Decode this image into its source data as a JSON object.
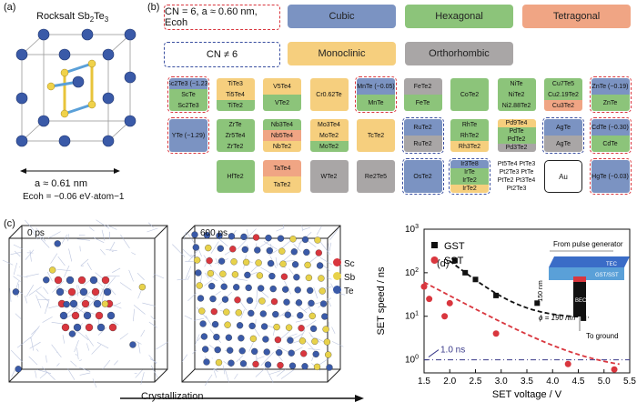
{
  "panel_a": {
    "label": "(a)",
    "title": "Rocksalt Sb2Te3",
    "lattice": "a ≈ 0.61 nm",
    "ecoh": "Ecoh = −0.06 eV·atom−1"
  },
  "panel_b": {
    "label": "(b)",
    "legend": {
      "cn6": "CN = 6, a ≈ 0.60 nm, Ecoh",
      "cn_not6": "CN ≠ 6",
      "cubic": "Cubic",
      "hexagonal": "Hexagonal",
      "tetragonal": "Tetragonal",
      "monoclinic": "Monoclinic",
      "orthorhombic": "Orthorhombic"
    },
    "colors": {
      "cubic": "#7b93c2",
      "hexagonal": "#8cc47a",
      "tetragonal": "#f0a584",
      "monoclinic": "#f6cf7e",
      "orthorhombic": "#a9a6a6",
      "red_dash": "#d9363e",
      "blue_dash": "#3a4fa0"
    },
    "tiles": [
      {
        "col": 0,
        "row": 0,
        "border": "red",
        "segs": [
          {
            "t": "Sc2Te3 (−1.23)",
            "c": "cub"
          },
          {
            "t": "ScTe",
            "c": "hex"
          },
          {
            "t": "Sc2Te3",
            "c": "hex"
          }
        ]
      },
      {
        "col": 1,
        "row": 0,
        "border": "",
        "segs": [
          {
            "t": "TiTe3",
            "c": "mon"
          },
          {
            "t": "Ti5Te4",
            "c": "mon"
          },
          {
            "t": "TiTe2",
            "c": "hex"
          }
        ]
      },
      {
        "col": 2,
        "row": 0,
        "border": "",
        "segs": [
          {
            "t": "V5Te4",
            "c": "mon"
          },
          {
            "t": "VTe2",
            "c": "hex"
          }
        ]
      },
      {
        "col": 3,
        "row": 0,
        "border": "",
        "segs": [
          {
            "t": "Cr0.62Te",
            "c": "mon"
          }
        ]
      },
      {
        "col": 4,
        "row": 0,
        "border": "red",
        "segs": [
          {
            "t": "MnTe (−0.05)",
            "c": "cub"
          },
          {
            "t": "MnTe",
            "c": "hex"
          }
        ]
      },
      {
        "col": 5,
        "row": 0,
        "border": "",
        "segs": [
          {
            "t": "FeTe2",
            "c": "ort"
          },
          {
            "t": "FeTe",
            "c": "hex"
          }
        ]
      },
      {
        "col": 6,
        "row": 0,
        "border": "",
        "segs": [
          {
            "t": "CoTe2",
            "c": "hex"
          }
        ]
      },
      {
        "col": 7,
        "row": 0,
        "border": "",
        "segs": [
          {
            "t": "NiTe",
            "c": "hex"
          },
          {
            "t": "NiTe2",
            "c": "hex"
          },
          {
            "t": "Ni2.88Te2",
            "c": "hex"
          }
        ]
      },
      {
        "col": 8,
        "row": 0,
        "border": "",
        "segs": [
          {
            "t": "Cu7Te5",
            "c": "hex"
          },
          {
            "t": "Cu2.19Te2",
            "c": "hex"
          },
          {
            "t": "Cu3Te2",
            "c": "tet"
          }
        ]
      },
      {
        "col": 9,
        "row": 0,
        "border": "red",
        "segs": [
          {
            "t": "ZnTe (−0.19)",
            "c": "cub"
          },
          {
            "t": "ZnTe",
            "c": "hex"
          }
        ]
      },
      {
        "col": 0,
        "row": 1,
        "border": "red",
        "segs": [
          {
            "t": "YTe (−1.29)",
            "c": "cub"
          }
        ]
      },
      {
        "col": 1,
        "row": 1,
        "border": "",
        "segs": [
          {
            "t": "ZrTe",
            "c": "hex"
          },
          {
            "t": "Zr5Te4",
            "c": "hex"
          },
          {
            "t": "ZrTe2",
            "c": "hex"
          }
        ]
      },
      {
        "col": 2,
        "row": 1,
        "border": "",
        "segs": [
          {
            "t": "Nb3Te4",
            "c": "hex"
          },
          {
            "t": "Nb5Te4",
            "c": "tet"
          },
          {
            "t": "NbTe2",
            "c": "mon"
          }
        ]
      },
      {
        "col": 3,
        "row": 1,
        "border": "",
        "segs": [
          {
            "t": "Mo3Te4",
            "c": "mon"
          },
          {
            "t": "MoTe2",
            "c": "mon"
          },
          {
            "t": "MoTe2",
            "c": "hex"
          }
        ]
      },
      {
        "col": 4,
        "row": 1,
        "border": "",
        "segs": [
          {
            "t": "TcTe2",
            "c": "mon"
          }
        ]
      },
      {
        "col": 5,
        "row": 1,
        "border": "blue",
        "segs": [
          {
            "t": "RuTe2",
            "c": "cub"
          },
          {
            "t": "RuTe2",
            "c": "ort"
          }
        ]
      },
      {
        "col": 6,
        "row": 1,
        "border": "",
        "segs": [
          {
            "t": "RhTe",
            "c": "hex"
          },
          {
            "t": "RhTe2",
            "c": "hex"
          },
          {
            "t": "Rh3Te2",
            "c": "mon"
          }
        ]
      },
      {
        "col": 7,
        "row": 1,
        "border": "",
        "segs": [
          {
            "t": "Pd9Te4",
            "c": "mon"
          },
          {
            "t": "PdTe",
            "c": "hex"
          },
          {
            "t": "PdTe2",
            "c": "hex"
          },
          {
            "t": "Pd3Te2",
            "c": "ort"
          }
        ]
      },
      {
        "col": 8,
        "row": 1,
        "border": "blue",
        "segs": [
          {
            "t": "AgTe",
            "c": "cub"
          },
          {
            "t": "AgTe",
            "c": "ort"
          }
        ]
      },
      {
        "col": 9,
        "row": 1,
        "border": "red",
        "segs": [
          {
            "t": "CdTe (−0.30)",
            "c": "cub"
          },
          {
            "t": "CdTe",
            "c": "hex"
          }
        ]
      },
      {
        "col": 1,
        "row": 2,
        "border": "",
        "segs": [
          {
            "t": "HfTe2",
            "c": "hex"
          }
        ]
      },
      {
        "col": 2,
        "row": 2,
        "border": "",
        "segs": [
          {
            "t": "TaTe4",
            "c": "tet"
          },
          {
            "t": "TaTe2",
            "c": "mon"
          }
        ]
      },
      {
        "col": 3,
        "row": 2,
        "border": "",
        "segs": [
          {
            "t": "WTe2",
            "c": "ort"
          }
        ]
      },
      {
        "col": 4,
        "row": 2,
        "border": "",
        "segs": [
          {
            "t": "Re2Te5",
            "c": "ort"
          }
        ]
      },
      {
        "col": 5,
        "row": 2,
        "border": "blue",
        "segs": [
          {
            "t": "OsTe2",
            "c": "cub"
          }
        ]
      },
      {
        "col": 6,
        "row": 2,
        "border": "blue",
        "segs": [
          {
            "t": "Ir3Te8",
            "c": "cub"
          },
          {
            "t": "IrTe",
            "c": "hex"
          },
          {
            "t": "IrTe2",
            "c": "hex"
          },
          {
            "t": "IrTe2",
            "c": "mon"
          }
        ]
      },
      {
        "col": 7,
        "row": 2,
        "border": "",
        "segs": [
          {
            "t": "Pt5Te4 PtTe3",
            "c": "wht"
          },
          {
            "t": "Pt2Te3 PtTe",
            "c": "wht"
          },
          {
            "t": "PtTe2 Pt3Te4",
            "c": "wht"
          },
          {
            "t": "Pt2Te3",
            "c": "wht"
          }
        ]
      },
      {
        "col": 8,
        "row": 2,
        "border": "au",
        "segs": [
          {
            "t": "Au",
            "c": "wht"
          }
        ]
      },
      {
        "col": 9,
        "row": 2,
        "border": "red",
        "segs": [
          {
            "t": "HgTe (−0.03)",
            "c": "cub"
          }
        ]
      }
    ]
  },
  "panel_c": {
    "label": "(c)",
    "time0": "0 ps",
    "time1": "600 ps",
    "legend": [
      {
        "name": "Sc",
        "color": "#d9363e"
      },
      {
        "name": "Sb",
        "color": "#e8d24a"
      },
      {
        "name": "Te",
        "color": "#3a5aa8"
      }
    ],
    "arrow": "Crystallization"
  },
  "panel_d": {
    "label": "(d)",
    "inset": {
      "source": "From pulse generator",
      "thickness": "150 nm",
      "diameter": "ϕ = 190 nm",
      "ground": "To ground",
      "tec": "TEC",
      "bec": "BEC",
      "film": "GST/SST"
    },
    "chart_data": {
      "type": "scatter",
      "xlabel": "SET voltage / V",
      "ylabel": "SET speed / ns",
      "xlim": [
        1.5,
        5.5
      ],
      "ylim": [
        0.5,
        1000
      ],
      "yscale": "log",
      "xticks": [
        "1.5",
        "2.0",
        "2.5",
        "3.0",
        "3.5",
        "4.0",
        "4.5",
        "5.0",
        "5.5"
      ],
      "yticks": [
        "10^0",
        "10^1",
        "10^2",
        "10^3"
      ],
      "reference": {
        "label": "1.0 ns",
        "y": 1.0
      },
      "series": [
        {
          "name": "GST",
          "color": "#111111",
          "marker": "square",
          "x": [
            2.1,
            2.3,
            2.5,
            2.9,
            3.7,
            4.6
          ],
          "y": [
            190,
            100,
            70,
            30,
            20,
            9
          ]
        },
        {
          "name": "SST",
          "color": "#d9363e",
          "marker": "circle",
          "x": [
            1.5,
            1.6,
            1.9,
            2.0,
            2.9,
            4.3,
            5.2
          ],
          "y": [
            48,
            25,
            10,
            20,
            4,
            0.8,
            0.6
          ]
        }
      ]
    }
  }
}
